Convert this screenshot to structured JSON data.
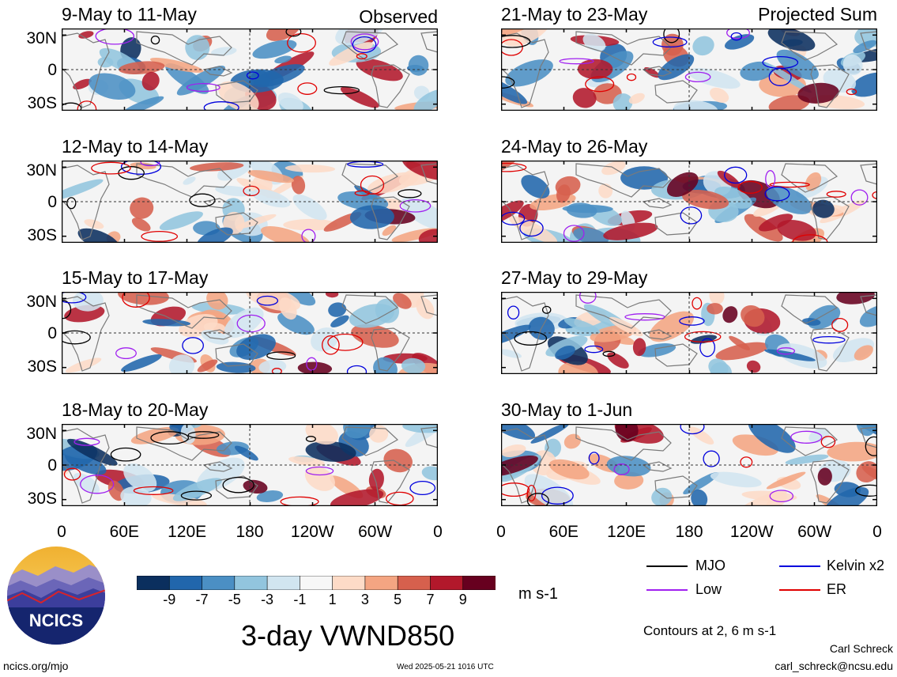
{
  "header": {
    "left_label": "Observed",
    "right_label": "Projected Sum"
  },
  "panels": {
    "left": [
      {
        "title": "9-May to 11-May"
      },
      {
        "title": "12-May to 14-May"
      },
      {
        "title": "15-May to 17-May"
      },
      {
        "title": "18-May to 20-May"
      }
    ],
    "right": [
      {
        "title": "21-May to 23-May"
      },
      {
        "title": "24-May to 26-May"
      },
      {
        "title": "27-May to 29-May"
      },
      {
        "title": "30-May to 1-Jun"
      }
    ]
  },
  "axes": {
    "lat_labels": [
      "30N",
      "0",
      "30S"
    ],
    "lon_labels": [
      "0",
      "60E",
      "120E",
      "180",
      "120W",
      "60W",
      "0"
    ]
  },
  "colorbar": {
    "ticks": [
      "-9",
      "-7",
      "-5",
      "-3",
      "-1",
      "1",
      "3",
      "5",
      "7",
      "9"
    ],
    "colors": [
      "#0b2f5e",
      "#2166ac",
      "#4b8fc4",
      "#92c5de",
      "#d1e5f0",
      "#f7f7f7",
      "#fddbc7",
      "#f4a582",
      "#d6604d",
      "#b2182b",
      "#67001f"
    ],
    "units": "m s-1"
  },
  "legend": {
    "items": [
      {
        "label": "MJO",
        "color": "#000000"
      },
      {
        "label": "Kelvin x2",
        "color": "#0000dd"
      },
      {
        "label": "Low",
        "color": "#a020f0"
      },
      {
        "label": "ER",
        "color": "#e00000"
      }
    ],
    "contour_note": "Contours at 2, 6 m s-1"
  },
  "footer": {
    "main_title": "3-day VWND850",
    "website": "ncics.org/mjo",
    "timestamp": "Wed 2025-05-21 1016 UTC",
    "author": "Carl Schreck",
    "email": "carl_schreck@ncsu.edu",
    "logo_text": "NCICS"
  }
}
